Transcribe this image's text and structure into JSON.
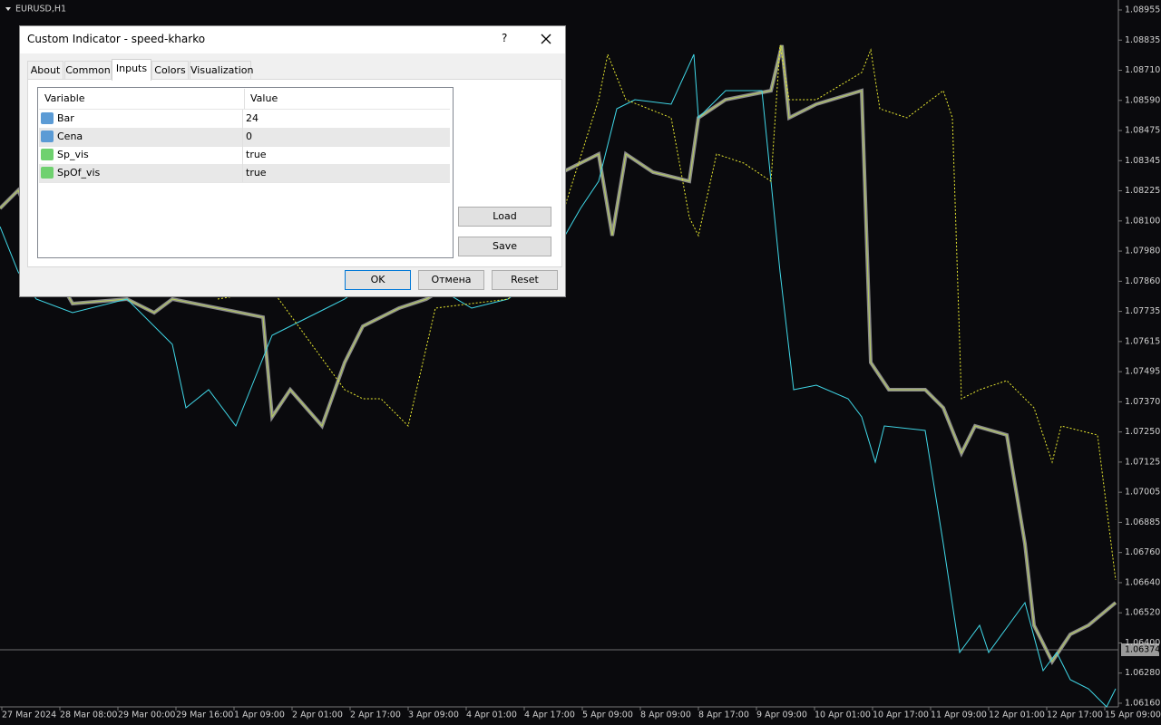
{
  "chart": {
    "symbol": "EURUSD,H1",
    "price_labels": [
      "1.08955",
      "1.08835",
      "1.08710",
      "1.08590",
      "1.08475",
      "1.08345",
      "1.08225",
      "1.08100",
      "1.07980",
      "1.07860",
      "1.07735",
      "1.07615",
      "1.07495",
      "1.07370",
      "1.07250",
      "1.07125",
      "1.07005",
      "1.06885",
      "1.06760",
      "1.06640",
      "1.06520",
      "1.06400",
      "1.06280",
      "1.06160"
    ],
    "current_price": "1.06374",
    "time_labels": [
      "27 Mar 2024",
      "28 Mar 08:00",
      "29 Mar 00:00",
      "29 Mar 16:00",
      "1 Apr 09:00",
      "2 Apr 01:00",
      "2 Apr 17:00",
      "3 Apr 09:00",
      "4 Apr 01:00",
      "4 Apr 17:00",
      "5 Apr 09:00",
      "8 Apr 09:00",
      "8 Apr 17:00",
      "9 Apr 09:00",
      "10 Apr 01:00",
      "10 Apr 17:00",
      "11 Apr 09:00",
      "12 Apr 01:00",
      "12 Apr 17:00",
      "15 Apr 09:00"
    ]
  },
  "dialog": {
    "title": "Custom Indicator - speed-kharko",
    "help": "?",
    "tabs": [
      "About",
      "Common",
      "Inputs",
      "Colors",
      "Visualization"
    ],
    "active_tab": "Inputs",
    "table": {
      "header": [
        "Variable",
        "Value"
      ],
      "rows": [
        [
          "Bar",
          "24"
        ],
        [
          "Cena",
          "0"
        ],
        [
          "Sp_vis",
          "true"
        ],
        [
          "SpOf_vis",
          "true"
        ]
      ]
    },
    "side_buttons": [
      "Load",
      "Save"
    ],
    "buttons": [
      "OK",
      "Отмена",
      "Reset"
    ]
  }
}
